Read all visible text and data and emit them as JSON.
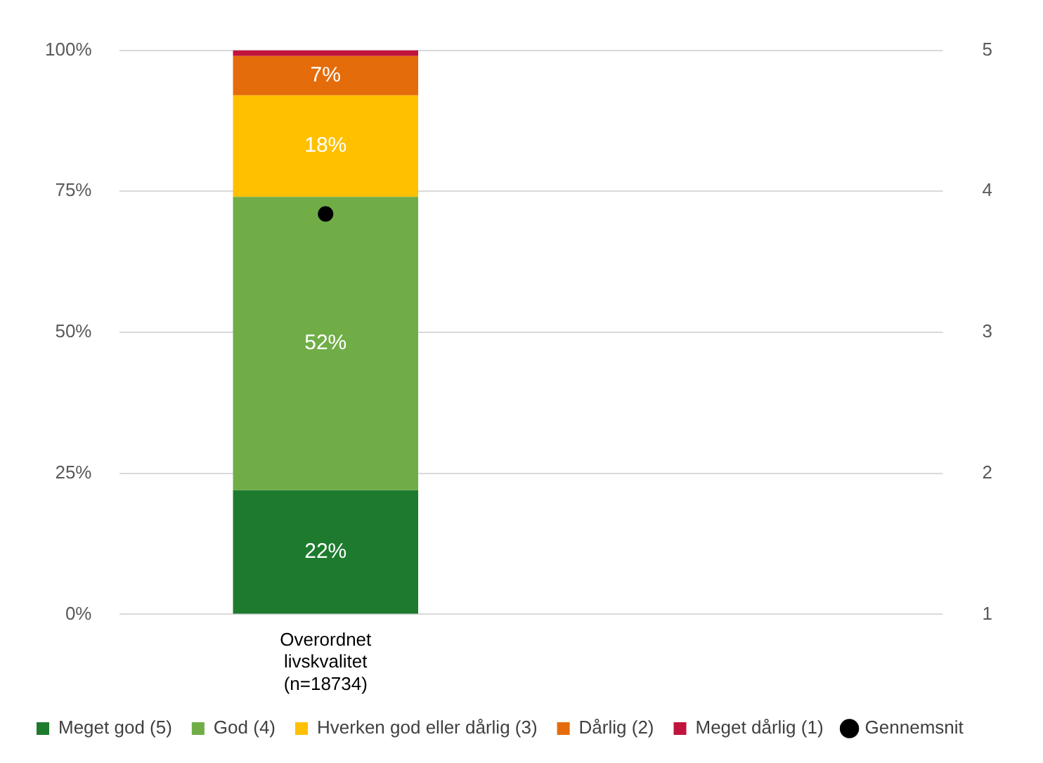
{
  "chart_data": {
    "type": "bar",
    "stacked": true,
    "categories": [
      "Overordnet\nlivskvalitet\n(n=18734)",
      null
    ],
    "series": [
      {
        "name": "Meget god (5)",
        "color": "#1e7b2e",
        "values": [
          22,
          null
        ],
        "value_labels": [
          "22%",
          null
        ]
      },
      {
        "name": "God (4)",
        "color": "#70ad47",
        "values": [
          52,
          null
        ],
        "value_labels": [
          "52%",
          null
        ]
      },
      {
        "name": "Hverken god eller dårlig (3)",
        "color": "#ffc000",
        "values": [
          18,
          null
        ],
        "value_labels": [
          "18%",
          null
        ]
      },
      {
        "name": "Dårlig (2)",
        "color": "#e46c0a",
        "values": [
          7,
          null
        ],
        "value_labels": [
          "7%",
          null
        ]
      },
      {
        "name": "Meget dårlig (1)",
        "color": "#c0143c",
        "values": [
          1,
          null
        ],
        "value_labels": [
          null,
          null
        ]
      },
      {
        "name": "Gennemsnit",
        "type": "scatter",
        "axis": "y2",
        "color": "#000000",
        "x": [
          "Overordnet\nlivskvalitet\n(n=18734)"
        ],
        "values": [
          3.84
        ]
      }
    ],
    "ylim": [
      0,
      100
    ],
    "yticks": [
      {
        "value": 0,
        "label": "0%"
      },
      {
        "value": 25,
        "label": "25%"
      },
      {
        "value": 50,
        "label": "50%"
      },
      {
        "value": 75,
        "label": "75%"
      },
      {
        "value": 100,
        "label": "100%"
      }
    ],
    "y2lim": [
      1,
      5
    ],
    "y2ticks": [
      1,
      2,
      3,
      4,
      5
    ],
    "grid": "y",
    "legend": "bottom",
    "marker": "circle"
  }
}
